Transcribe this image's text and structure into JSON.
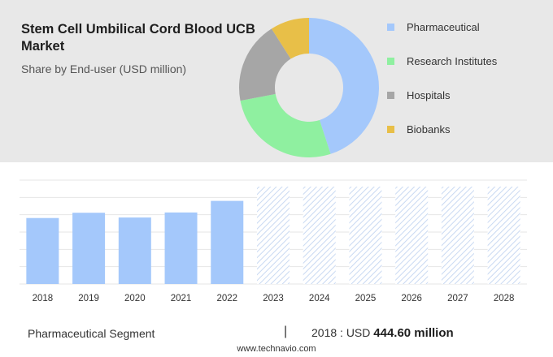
{
  "header": {
    "title": "Stem Cell Umbilical Cord Blood UCB Market",
    "subtitle": "Share by End-user (USD million)"
  },
  "legend": [
    {
      "label": "Pharmaceutical",
      "color": "#a4c8fb"
    },
    {
      "label": "Research Institutes",
      "color": "#8ff0a0"
    },
    {
      "label": "Hospitals",
      "color": "#a6a6a6"
    },
    {
      "label": "Biobanks",
      "color": "#e8bf48"
    }
  ],
  "chart_data": [
    {
      "type": "pie",
      "subtype": "donut",
      "categories": [
        "Pharmaceutical",
        "Research Institutes",
        "Hospitals",
        "Biobanks"
      ],
      "values": [
        45,
        27,
        19,
        9
      ],
      "colors": [
        "#a4c8fb",
        "#8ff0a0",
        "#a6a6a6",
        "#e8bf48"
      ]
    },
    {
      "type": "bar",
      "categories": [
        "2018",
        "2019",
        "2020",
        "2021",
        "2022",
        "2023",
        "2024",
        "2025",
        "2026",
        "2027",
        "2028"
      ],
      "values": [
        444.6,
        480,
        448,
        482,
        560,
        null,
        null,
        null,
        null,
        null,
        null
      ],
      "forecast_from": "2023",
      "ylim": [
        0,
        700
      ],
      "grid": true,
      "bar_color": "#a4c8fb",
      "forecast_hatch_color": "#c9d9f2"
    }
  ],
  "footer": {
    "segment": "Pharmaceutical Segment",
    "separator": "|",
    "year_label": "2018 : USD",
    "value": "444.60 million",
    "url": "www.technavio.com"
  }
}
